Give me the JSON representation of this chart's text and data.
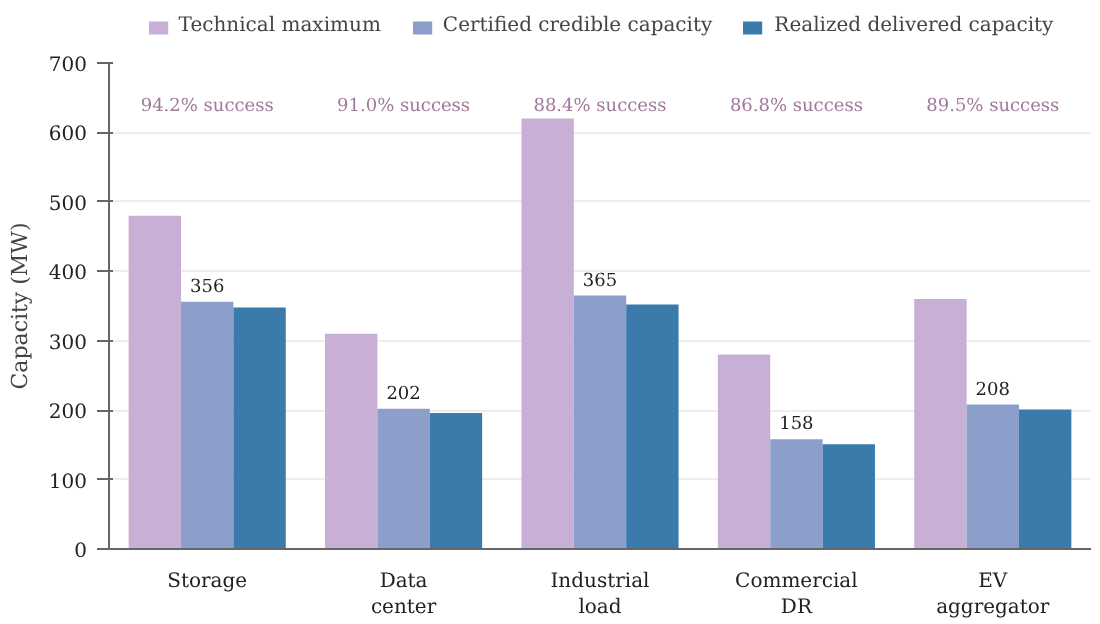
{
  "chart_data": {
    "type": "bar",
    "ylabel": "Capacity (MW)",
    "categories": [
      "Storage",
      "Data\ncenter",
      "Industrial\nload",
      "Commercial\nDR",
      "EV\naggregator"
    ],
    "series": [
      {
        "name": "Technical maximum",
        "color": "#c8afd5",
        "values": [
          480,
          310,
          620,
          280,
          360
        ]
      },
      {
        "name": "Certified credible capacity",
        "color": "#8c9fcb",
        "values": [
          356,
          202,
          365,
          158,
          208
        ],
        "value_labels": [
          "356",
          "202",
          "365",
          "158",
          "208"
        ]
      },
      {
        "name": "Realized delivered capacity",
        "color": "#3a7bab",
        "values": [
          348,
          196,
          352,
          151,
          201
        ]
      }
    ],
    "annotations": [
      "94.2% success",
      "91.0% success",
      "88.4% success",
      "86.8% success",
      "89.5% success"
    ],
    "ylim": [
      0,
      700
    ],
    "yticks": [
      0,
      100,
      200,
      300,
      400,
      500,
      600,
      700
    ],
    "grid": "y",
    "legend": "top"
  }
}
